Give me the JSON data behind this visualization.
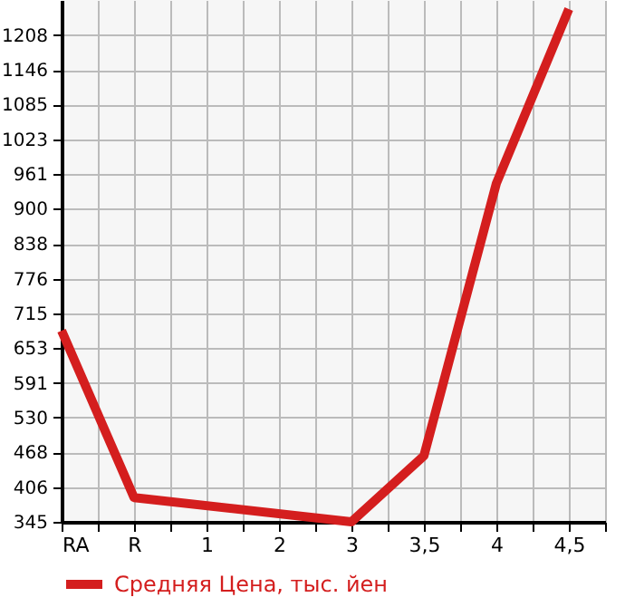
{
  "chart_data": {
    "type": "line",
    "categories": [
      "RA",
      "R",
      "1",
      "2",
      "3",
      "3,5",
      "4",
      "4,5"
    ],
    "series": [
      {
        "name": "Средняя Цена, тыс. йен",
        "color": "#d41e1e",
        "values": [
          684,
          388,
          null,
          null,
          345,
          462,
          945,
          1254
        ]
      }
    ],
    "ylim": [
      345,
      1270
    ],
    "yticks": [
      345,
      406,
      468,
      530,
      591,
      653,
      715,
      776,
      838,
      900,
      961,
      1023,
      1085,
      1146,
      1208
    ],
    "grid": true,
    "legend": "bottom",
    "marker": "none",
    "line_style": "solid"
  }
}
